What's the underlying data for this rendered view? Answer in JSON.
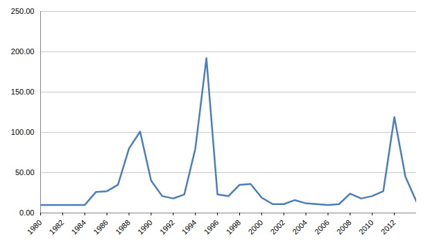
{
  "chart_data": {
    "type": "line",
    "x": [
      1980,
      1981,
      1982,
      1983,
      1984,
      1985,
      1986,
      1987,
      1988,
      1989,
      1990,
      1991,
      1992,
      1993,
      1994,
      1995,
      1996,
      1997,
      1998,
      1999,
      2000,
      2001,
      2002,
      2003,
      2004,
      2005,
      2006,
      2007,
      2008,
      2009,
      2010,
      2011,
      2012,
      2013,
      2014
    ],
    "values": [
      10,
      10,
      10,
      10,
      10,
      26,
      27,
      35,
      80,
      101,
      40,
      21,
      18,
      23,
      80,
      192,
      23,
      21,
      35,
      36,
      19,
      11,
      11,
      16,
      12,
      11,
      10,
      11,
      24,
      18,
      21,
      27,
      119,
      45,
      14
    ],
    "color": "#4a7ebb",
    "xlim": [
      1980,
      2014
    ],
    "xticks": [
      1980,
      1982,
      1984,
      1986,
      1988,
      1990,
      1992,
      1994,
      1996,
      1998,
      2000,
      2002,
      2004,
      2006,
      2008,
      2010,
      2012
    ],
    "ylim": [
      0,
      250
    ],
    "yticks": [
      {
        "value": 0,
        "label": "0.00"
      },
      {
        "value": 50,
        "label": "50.00"
      },
      {
        "value": 100,
        "label": "100.00"
      },
      {
        "value": 150,
        "label": "150.00"
      },
      {
        "value": 200,
        "label": "200.00"
      },
      {
        "value": 250,
        "label": "250.00"
      }
    ],
    "grid": true
  }
}
